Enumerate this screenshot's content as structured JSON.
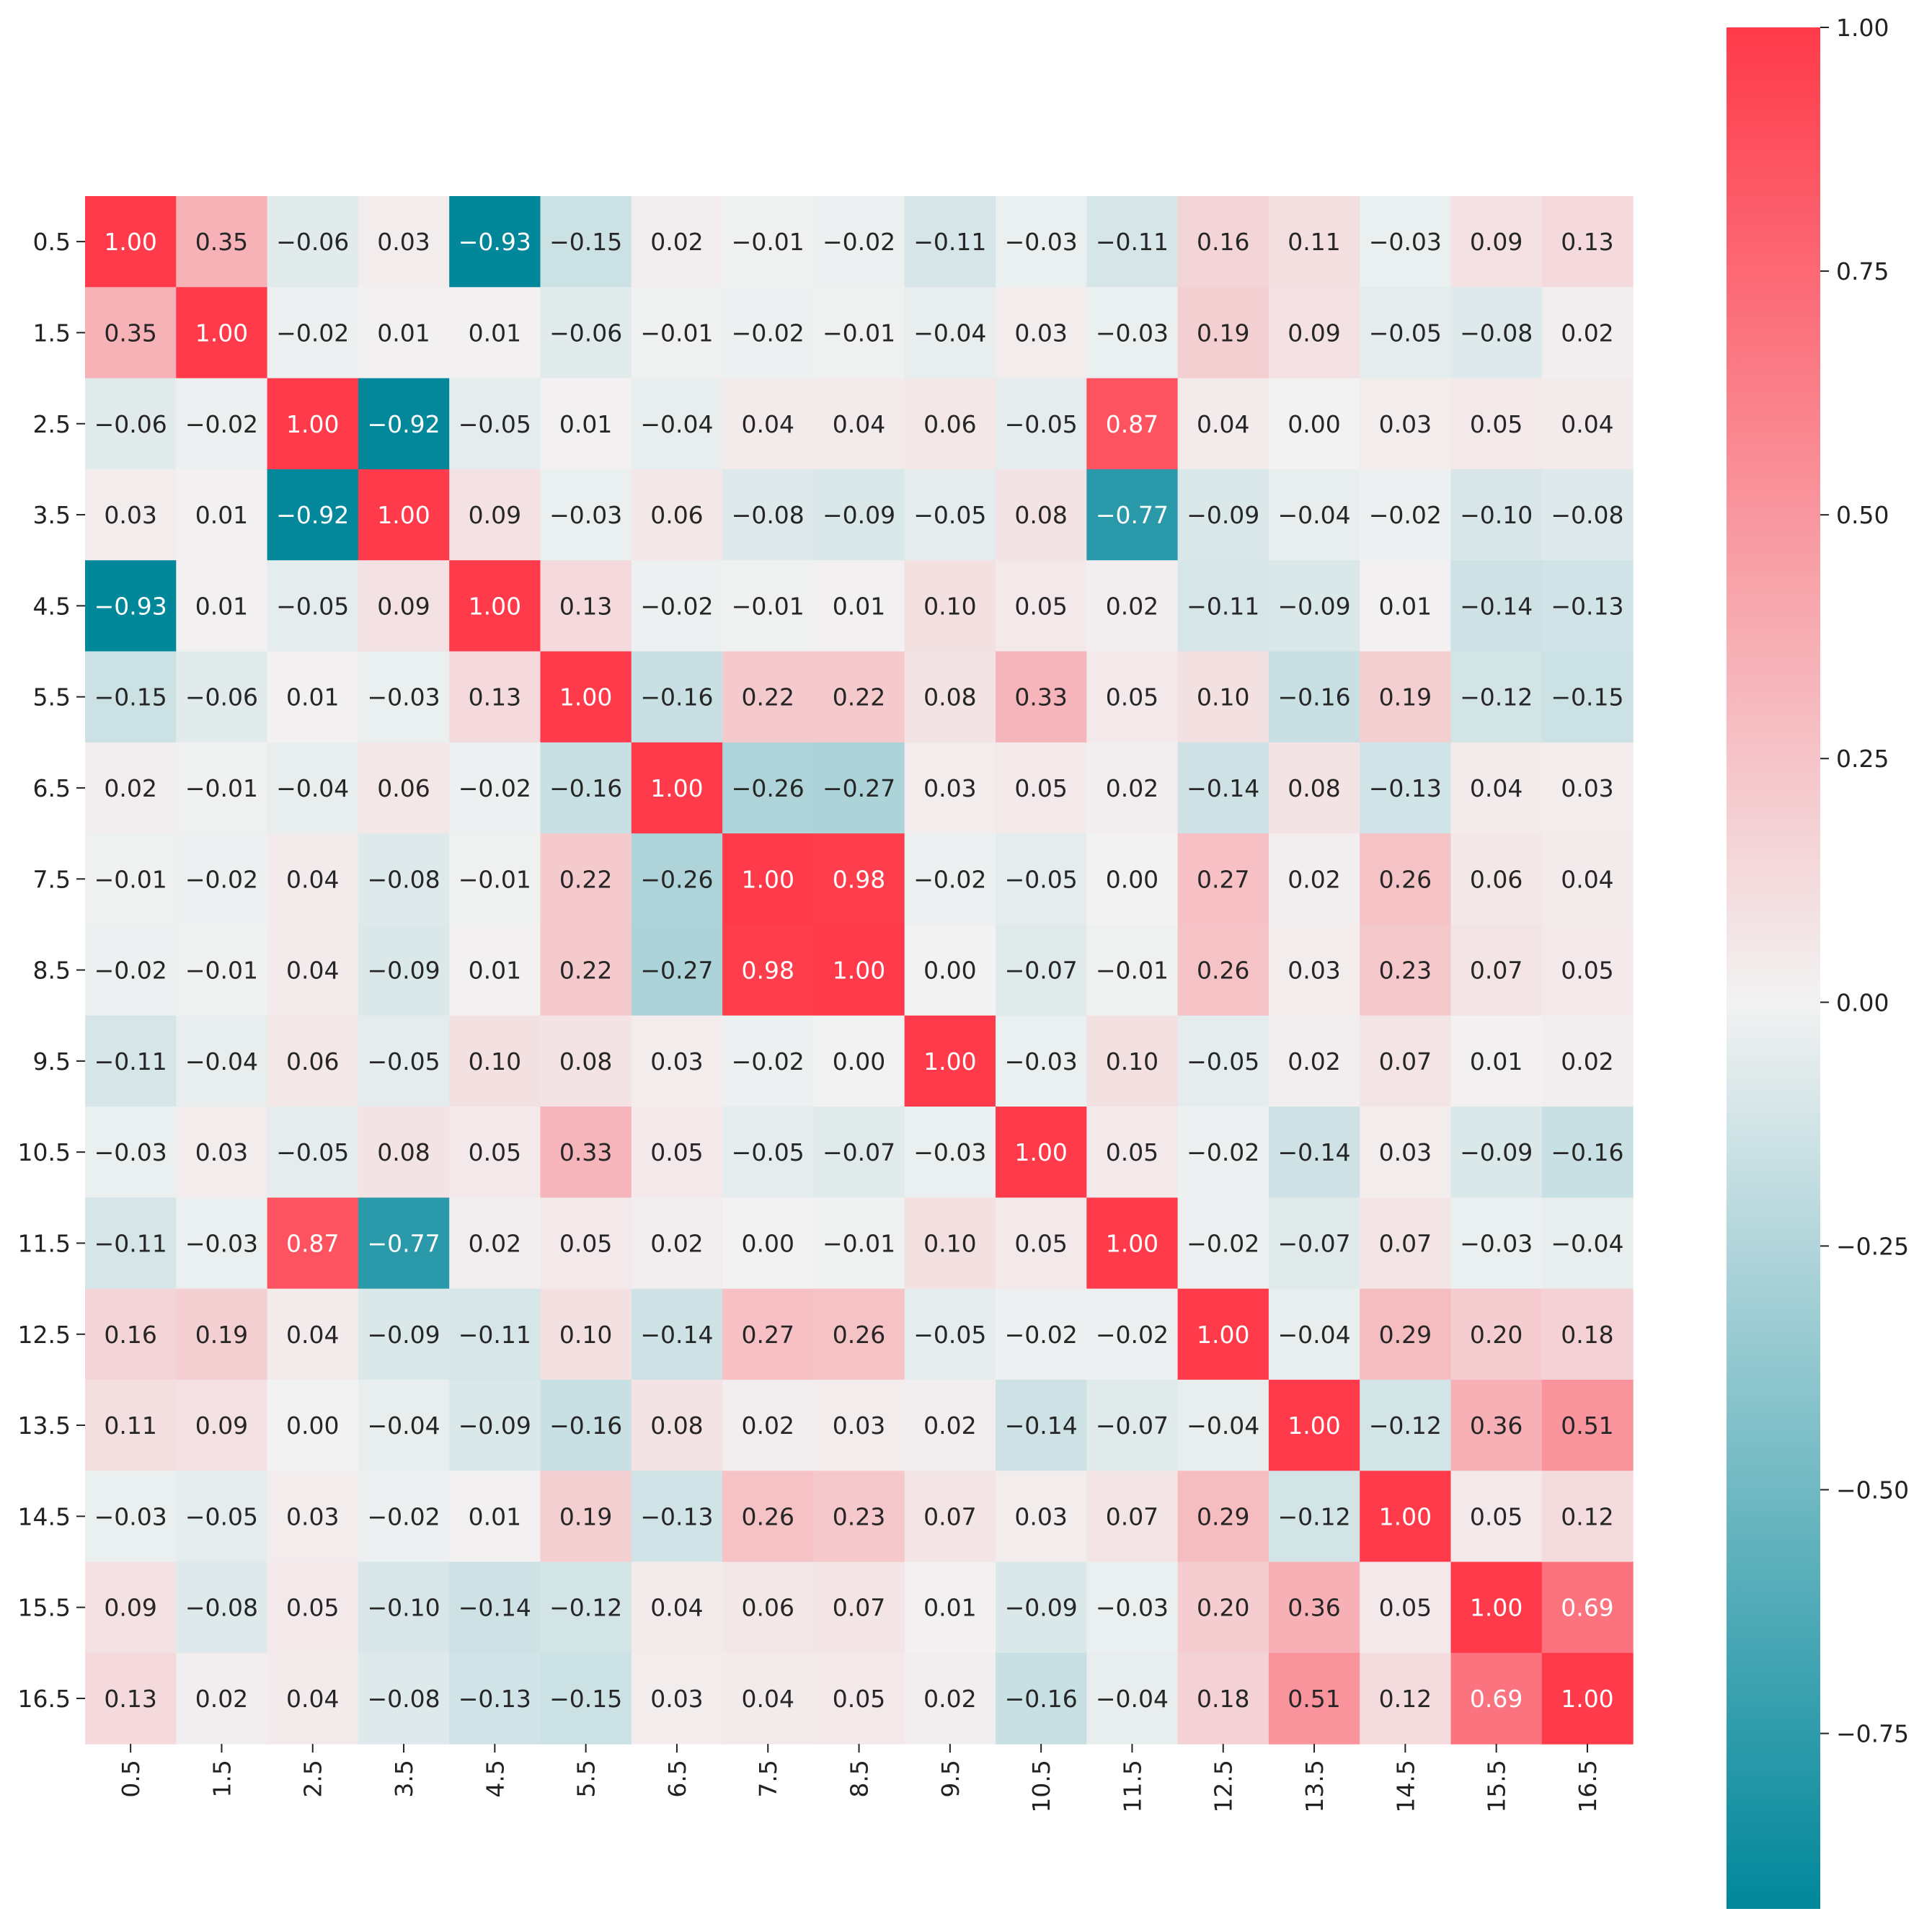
{
  "chart_data": {
    "type": "heatmap",
    "title": "",
    "xlabel": "",
    "ylabel": "",
    "row_labels": [
      "0.5",
      "1.5",
      "2.5",
      "3.5",
      "4.5",
      "5.5",
      "6.5",
      "7.5",
      "8.5",
      "9.5",
      "10.5",
      "11.5",
      "12.5",
      "13.5",
      "14.5",
      "15.5",
      "16.5"
    ],
    "col_labels": [
      "0.5",
      "1.5",
      "2.5",
      "3.5",
      "4.5",
      "5.5",
      "6.5",
      "7.5",
      "8.5",
      "9.5",
      "10.5",
      "11.5",
      "12.5",
      "13.5",
      "14.5",
      "15.5",
      "16.5"
    ],
    "values": [
      [
        1.0,
        0.35,
        -0.06,
        0.03,
        -0.93,
        -0.15,
        0.02,
        -0.01,
        -0.02,
        -0.11,
        -0.03,
        -0.11,
        0.16,
        0.11,
        -0.03,
        0.09,
        0.13
      ],
      [
        0.35,
        1.0,
        -0.02,
        0.01,
        0.01,
        -0.06,
        -0.01,
        -0.02,
        -0.01,
        -0.04,
        0.03,
        -0.03,
        0.19,
        0.09,
        -0.05,
        -0.08,
        0.02
      ],
      [
        -0.06,
        -0.02,
        1.0,
        -0.92,
        -0.05,
        0.01,
        -0.04,
        0.04,
        0.04,
        0.06,
        -0.05,
        0.87,
        0.04,
        0.0,
        0.03,
        0.05,
        0.04
      ],
      [
        0.03,
        0.01,
        -0.92,
        1.0,
        0.09,
        -0.03,
        0.06,
        -0.08,
        -0.09,
        -0.05,
        0.08,
        -0.77,
        -0.09,
        -0.04,
        -0.02,
        -0.1,
        -0.08
      ],
      [
        -0.93,
        0.01,
        -0.05,
        0.09,
        1.0,
        0.13,
        -0.02,
        -0.01,
        0.01,
        0.1,
        0.05,
        0.02,
        -0.11,
        -0.09,
        0.01,
        -0.14,
        -0.13
      ],
      [
        -0.15,
        -0.06,
        0.01,
        -0.03,
        0.13,
        1.0,
        -0.16,
        0.22,
        0.22,
        0.08,
        0.33,
        0.05,
        0.1,
        -0.16,
        0.19,
        -0.12,
        -0.15
      ],
      [
        0.02,
        -0.01,
        -0.04,
        0.06,
        -0.02,
        -0.16,
        1.0,
        -0.26,
        -0.27,
        0.03,
        0.05,
        0.02,
        -0.14,
        0.08,
        -0.13,
        0.04,
        0.03
      ],
      [
        -0.01,
        -0.02,
        0.04,
        -0.08,
        -0.01,
        0.22,
        -0.26,
        1.0,
        0.98,
        -0.02,
        -0.05,
        0.0,
        0.27,
        0.02,
        0.26,
        0.06,
        0.04
      ],
      [
        -0.02,
        -0.01,
        0.04,
        -0.09,
        0.01,
        0.22,
        -0.27,
        0.98,
        1.0,
        0.0,
        -0.07,
        -0.01,
        0.26,
        0.03,
        0.23,
        0.07,
        0.05
      ],
      [
        -0.11,
        -0.04,
        0.06,
        -0.05,
        0.1,
        0.08,
        0.03,
        -0.02,
        0.0,
        1.0,
        -0.03,
        0.1,
        -0.05,
        0.02,
        0.07,
        0.01,
        0.02
      ],
      [
        -0.03,
        0.03,
        -0.05,
        0.08,
        0.05,
        0.33,
        0.05,
        -0.05,
        -0.07,
        -0.03,
        1.0,
        0.05,
        -0.02,
        -0.14,
        0.03,
        -0.09,
        -0.16
      ],
      [
        -0.11,
        -0.03,
        0.87,
        -0.77,
        0.02,
        0.05,
        0.02,
        0.0,
        -0.01,
        0.1,
        0.05,
        1.0,
        -0.02,
        -0.07,
        0.07,
        -0.03,
        -0.04
      ],
      [
        0.16,
        0.19,
        0.04,
        -0.09,
        -0.11,
        0.1,
        -0.14,
        0.27,
        0.26,
        -0.05,
        -0.02,
        -0.02,
        1.0,
        -0.04,
        0.29,
        0.2,
        0.18
      ],
      [
        0.11,
        0.09,
        0.0,
        -0.04,
        -0.09,
        -0.16,
        0.08,
        0.02,
        0.03,
        0.02,
        -0.14,
        -0.07,
        -0.04,
        1.0,
        -0.12,
        0.36,
        0.51
      ],
      [
        -0.03,
        -0.05,
        0.03,
        -0.02,
        0.01,
        0.19,
        -0.13,
        0.26,
        0.23,
        0.07,
        0.03,
        0.07,
        0.29,
        -0.12,
        1.0,
        0.05,
        0.12
      ],
      [
        0.09,
        -0.08,
        0.05,
        -0.1,
        -0.14,
        -0.12,
        0.04,
        0.06,
        0.07,
        0.01,
        -0.09,
        -0.03,
        0.2,
        0.36,
        0.05,
        1.0,
        0.69
      ],
      [
        0.13,
        0.02,
        0.04,
        -0.08,
        -0.13,
        -0.15,
        0.03,
        0.04,
        0.05,
        0.02,
        -0.16,
        -0.04,
        0.18,
        0.51,
        0.12,
        0.69,
        1.0
      ]
    ],
    "colorbar": {
      "vmin": -0.93,
      "vmax": 1.0,
      "ticks": [
        1.0,
        0.75,
        0.5,
        0.25,
        0.0,
        -0.25,
        -0.5,
        -0.75
      ],
      "tick_labels": [
        "1.00",
        "0.75",
        "0.50",
        "0.25",
        "0.00",
        "−0.25",
        "−0.50",
        "−0.75"
      ]
    },
    "colormap": {
      "low": "#00879A",
      "mid": "#F2F2F2",
      "high": "#FF3A4A"
    },
    "annotation_light_text": "#FFFFFF",
    "annotation_dark_text": "#262626"
  }
}
